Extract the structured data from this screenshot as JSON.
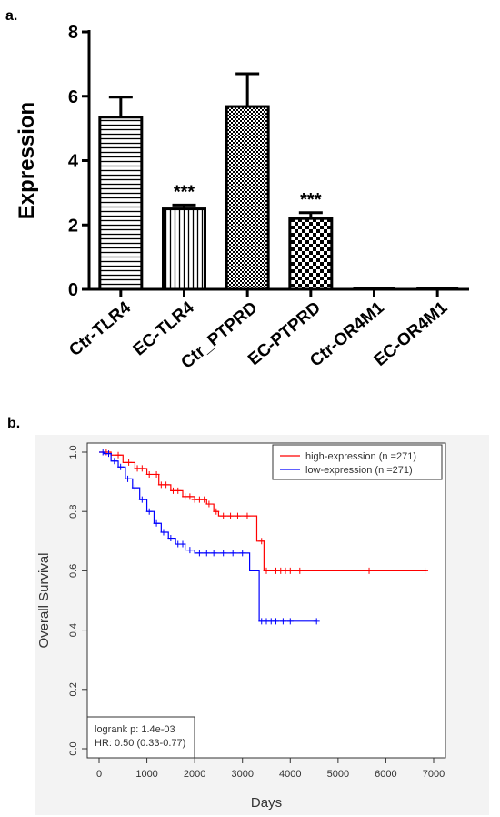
{
  "panels": {
    "a": "a.",
    "b": "b."
  },
  "chart_data": [
    {
      "type": "bar",
      "ylabel": "Expression",
      "ylim": [
        0,
        8
      ],
      "yticks": [
        "0",
        "2",
        "4",
        "6",
        "8"
      ],
      "categories": [
        "Ctr-TLR4",
        "EC-TLR4",
        "Ctr_PTPRD",
        "EC-PTPRD",
        "Ctr-OR4M1",
        "EC-OR4M1"
      ],
      "values": [
        5.35,
        2.5,
        5.68,
        2.2,
        0.02,
        0.02
      ],
      "errors": [
        0.62,
        0.12,
        1.02,
        0.18,
        0,
        0
      ],
      "fills": [
        "hstripes",
        "vstripes",
        "smallcheck",
        "bigcheck",
        "none",
        "none"
      ],
      "annotations": [
        "",
        "***",
        "",
        "***",
        "",
        ""
      ],
      "grid": false
    },
    {
      "type": "line",
      "subtype": "kaplan-meier",
      "xlabel": "Days",
      "ylabel": "Overall Survival",
      "xlim": [
        0,
        7000
      ],
      "ylim": [
        0,
        1
      ],
      "xticks": [
        "0",
        "1000",
        "2000",
        "3000",
        "4000",
        "5000",
        "6000",
        "7000"
      ],
      "yticks": [
        "0.0",
        "0.2",
        "0.4",
        "0.6",
        "0.8",
        "1.0"
      ],
      "legend_position": "top-right",
      "series": [
        {
          "name": "high-expression (n =271)",
          "color": "#ff0000",
          "steps": [
            [
              0,
              1.0
            ],
            [
              250,
              0.99
            ],
            [
              500,
              0.965
            ],
            [
              750,
              0.945
            ],
            [
              1000,
              0.925
            ],
            [
              1250,
              0.89
            ],
            [
              1500,
              0.87
            ],
            [
              1750,
              0.85
            ],
            [
              2000,
              0.84
            ],
            [
              2250,
              0.825
            ],
            [
              2400,
              0.8
            ],
            [
              2500,
              0.785
            ],
            [
              3250,
              0.785
            ],
            [
              3300,
              0.7
            ],
            [
              3400,
              0.7
            ],
            [
              3450,
              0.6
            ],
            [
              6850,
              0.6
            ]
          ],
          "censor_days": [
            150,
            400,
            620,
            800,
            900,
            1050,
            1200,
            1300,
            1400,
            1550,
            1650,
            1800,
            1900,
            2000,
            2100,
            2200,
            2300,
            2450,
            2600,
            2750,
            2900,
            3100,
            3400,
            3500,
            3700,
            3800,
            3900,
            4000,
            4200,
            5650,
            6820
          ]
        },
        {
          "name": "low-expression (n =271)",
          "color": "#0000ff",
          "steps": [
            [
              0,
              1.0
            ],
            [
              100,
              0.995
            ],
            [
              250,
              0.97
            ],
            [
              400,
              0.95
            ],
            [
              550,
              0.91
            ],
            [
              700,
              0.88
            ],
            [
              850,
              0.84
            ],
            [
              1000,
              0.8
            ],
            [
              1150,
              0.76
            ],
            [
              1300,
              0.73
            ],
            [
              1450,
              0.71
            ],
            [
              1600,
              0.69
            ],
            [
              1800,
              0.67
            ],
            [
              2000,
              0.66
            ],
            [
              3100,
              0.66
            ],
            [
              3150,
              0.6
            ],
            [
              3300,
              0.6
            ],
            [
              3350,
              0.43
            ],
            [
              4550,
              0.43
            ]
          ],
          "censor_days": [
            80,
            200,
            320,
            450,
            600,
            750,
            900,
            1050,
            1200,
            1350,
            1500,
            1650,
            1750,
            1900,
            2100,
            2250,
            2400,
            2600,
            2800,
            3000,
            3400,
            3500,
            3600,
            3700,
            3850,
            4000,
            4550
          ]
        }
      ],
      "annotation_lines": [
        "logrank p: 1.4e-03",
        "HR: 0.50 (0.33-0.77)"
      ]
    }
  ]
}
